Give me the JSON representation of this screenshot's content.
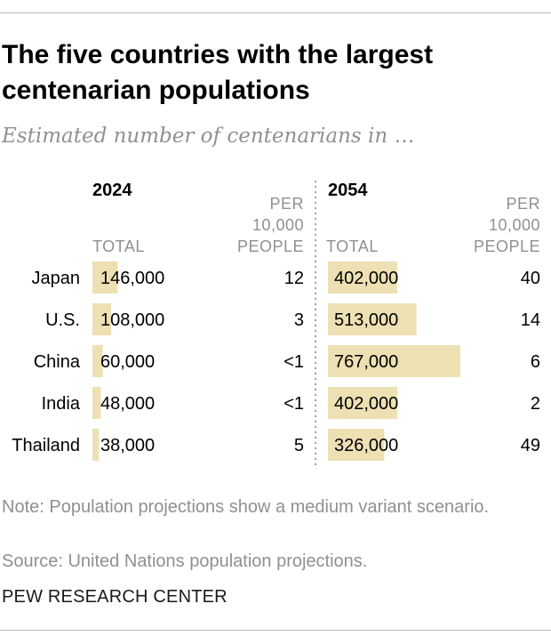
{
  "title": "The five countries with the largest centenarian populations",
  "subtitle": "Estimated number of centenarians in …",
  "note": "Note: Population projections show a medium variant scenario.",
  "source": "Source: United Nations population projections.",
  "credit": "PEW RESEARCH CENTER",
  "colors": {
    "bar": "#ede0b3",
    "text": "#000000",
    "muted": "#909090",
    "divider": "#808080"
  },
  "chart_data": {
    "type": "table",
    "categories": [
      "Japan",
      "U.S.",
      "China",
      "India",
      "Thailand"
    ],
    "panels": [
      {
        "year": "2024",
        "total_header": "TOTAL",
        "per_header": [
          "PER",
          "10,000",
          "PEOPLE"
        ],
        "totals": [
          146000,
          108000,
          60000,
          48000,
          38000
        ],
        "total_labels": [
          "146,000",
          "108,000",
          "60,000",
          "48,000",
          "38,000"
        ],
        "per_10000": [
          "12",
          "3",
          "<1",
          "<1",
          "5"
        ]
      },
      {
        "year": "2054",
        "total_header": "TOTAL",
        "per_header": [
          "PER",
          "10,000",
          "PEOPLE"
        ],
        "totals": [
          402000,
          513000,
          767000,
          402000,
          326000
        ],
        "total_labels": [
          "402,000",
          "513,000",
          "767,000",
          "402,000",
          "326,000"
        ],
        "per_10000": [
          "40",
          "14",
          "6",
          "2",
          "49"
        ]
      }
    ],
    "value_max": 767000
  }
}
